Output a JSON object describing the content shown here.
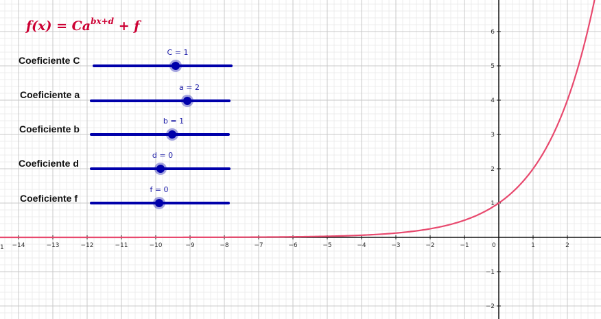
{
  "formula": {
    "lhs": "f(x)",
    "eq": " = ",
    "base": "Ca",
    "exponent": "bx+d",
    "tail": " + f",
    "color": "#cc0033"
  },
  "sliders": [
    {
      "label": "Coeficiente C",
      "value_text": "C = 1",
      "value": 1
    },
    {
      "label": "Coeficiente a",
      "value_text": "a = 2",
      "value": 2
    },
    {
      "label": "Coeficiente b",
      "value_text": "b = 1",
      "value": 1
    },
    {
      "label": "Coeficiente d",
      "value_text": "d = 0",
      "value": 0
    },
    {
      "label": "Coeficiente f",
      "value_text": "f = 0",
      "value": 0
    }
  ],
  "graph": {
    "x_ticks": [
      -14,
      -13,
      -12,
      -11,
      -10,
      -9,
      -8,
      -7,
      -6,
      -5,
      -4,
      -3,
      -2,
      -1,
      1,
      2
    ],
    "y_ticks": [
      -2,
      -1,
      1,
      2,
      3,
      4,
      5,
      6
    ],
    "origin_label": "0",
    "edge_label": "1",
    "curve_color": "#e8496e",
    "slider_color": "#0000aa"
  }
}
